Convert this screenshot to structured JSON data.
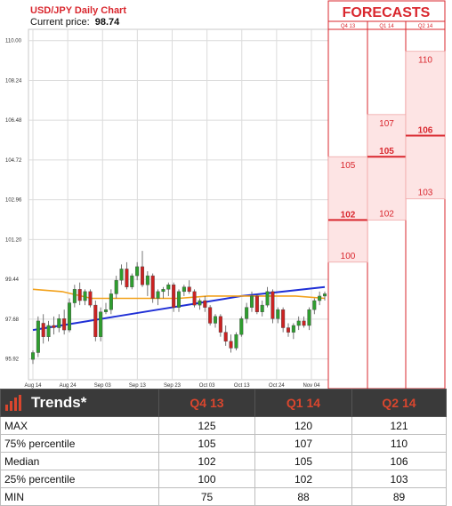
{
  "chart": {
    "title": "USD/JPY Daily Chart",
    "price_label": "Current price:",
    "price_value": "98.74"
  },
  "forecast_panel": {
    "title": "FORECASTS",
    "columns": [
      "Q4 13",
      "Q1 14",
      "Q2 14"
    ]
  },
  "trends_table": {
    "title": "Trends*",
    "headers": [
      "Q4 13",
      "Q1 14",
      "Q2 14"
    ],
    "rows": [
      {
        "label": "MAX",
        "values": [
          "125",
          "120",
          "121"
        ]
      },
      {
        "label": "75% percentile",
        "values": [
          "105",
          "107",
          "110"
        ]
      },
      {
        "label": "Median",
        "values": [
          "102",
          "105",
          "106"
        ]
      },
      {
        "label": "25% percentile",
        "values": [
          "100",
          "102",
          "103"
        ]
      },
      {
        "label": "MIN",
        "values": [
          "75",
          "88",
          "89"
        ]
      }
    ]
  },
  "colors": {
    "forecast_red": "#d9272e",
    "candle_up": "#2e9e2e",
    "candle_down": "#cc2222",
    "trend_blue": "#1f2fd6",
    "trend_orange": "#f2a11a",
    "band_fill": "#fde4e4"
  },
  "chart_data": {
    "type": "candlestick",
    "title": "USD/JPY Daily Chart",
    "ylim": [
      95.0,
      110.5
    ],
    "yticks": [
      "110.00",
      "108.24",
      "106.48",
      "104.72",
      "102.96",
      "101.20",
      "99.44",
      "97.68",
      "95.92"
    ],
    "yticks_values": [
      110.0,
      108.24,
      106.48,
      104.72,
      102.96,
      101.2,
      99.44,
      97.68,
      95.92
    ],
    "xticks": [
      "Aug 14",
      "Aug 24",
      "Sep 03",
      "Sep 13",
      "Sep 23",
      "Oct 03",
      "Oct 13",
      "Oct 24",
      "Nov 04"
    ],
    "grid": true,
    "candles": [
      {
        "o": 95.9,
        "h": 96.3,
        "l": 95.7,
        "c": 96.2
      },
      {
        "o": 96.2,
        "h": 97.8,
        "l": 96.0,
        "c": 97.6
      },
      {
        "o": 97.5,
        "h": 97.9,
        "l": 96.6,
        "c": 96.9
      },
      {
        "o": 96.9,
        "h": 97.6,
        "l": 96.7,
        "c": 97.4
      },
      {
        "o": 97.4,
        "h": 97.8,
        "l": 97.0,
        "c": 97.3
      },
      {
        "o": 97.3,
        "h": 97.9,
        "l": 97.1,
        "c": 97.7
      },
      {
        "o": 97.7,
        "h": 98.1,
        "l": 97.0,
        "c": 97.2
      },
      {
        "o": 97.2,
        "h": 98.6,
        "l": 97.1,
        "c": 98.4
      },
      {
        "o": 98.4,
        "h": 99.2,
        "l": 98.2,
        "c": 99.0
      },
      {
        "o": 99.0,
        "h": 99.3,
        "l": 98.3,
        "c": 98.5
      },
      {
        "o": 98.5,
        "h": 99.0,
        "l": 98.3,
        "c": 98.9
      },
      {
        "o": 98.9,
        "h": 99.0,
        "l": 98.2,
        "c": 98.3
      },
      {
        "o": 98.3,
        "h": 98.5,
        "l": 96.7,
        "c": 96.9
      },
      {
        "o": 96.9,
        "h": 98.2,
        "l": 96.7,
        "c": 98.0
      },
      {
        "o": 98.0,
        "h": 98.4,
        "l": 97.9,
        "c": 98.1
      },
      {
        "o": 98.1,
        "h": 99.0,
        "l": 97.9,
        "c": 98.8
      },
      {
        "o": 98.8,
        "h": 99.6,
        "l": 98.6,
        "c": 99.4
      },
      {
        "o": 99.4,
        "h": 100.1,
        "l": 99.2,
        "c": 99.9
      },
      {
        "o": 99.9,
        "h": 100.2,
        "l": 99.0,
        "c": 99.1
      },
      {
        "o": 99.1,
        "h": 99.7,
        "l": 99.0,
        "c": 99.6
      },
      {
        "o": 99.6,
        "h": 100.2,
        "l": 99.4,
        "c": 100.0
      },
      {
        "o": 100.0,
        "h": 100.7,
        "l": 99.1,
        "c": 99.2
      },
      {
        "o": 99.2,
        "h": 99.8,
        "l": 98.7,
        "c": 99.6
      },
      {
        "o": 99.6,
        "h": 99.7,
        "l": 98.4,
        "c": 98.6
      },
      {
        "o": 98.6,
        "h": 99.0,
        "l": 98.3,
        "c": 98.9
      },
      {
        "o": 98.9,
        "h": 99.1,
        "l": 98.6,
        "c": 99.0
      },
      {
        "o": 99.0,
        "h": 99.3,
        "l": 98.7,
        "c": 99.2
      },
      {
        "o": 99.2,
        "h": 99.3,
        "l": 98.0,
        "c": 98.2
      },
      {
        "o": 98.2,
        "h": 99.0,
        "l": 98.0,
        "c": 98.9
      },
      {
        "o": 98.9,
        "h": 99.2,
        "l": 98.7,
        "c": 99.1
      },
      {
        "o": 99.1,
        "h": 99.4,
        "l": 98.8,
        "c": 98.9
      },
      {
        "o": 98.9,
        "h": 99.0,
        "l": 98.2,
        "c": 98.3
      },
      {
        "o": 98.3,
        "h": 98.6,
        "l": 98.1,
        "c": 98.5
      },
      {
        "o": 98.5,
        "h": 98.7,
        "l": 98.0,
        "c": 98.2
      },
      {
        "o": 98.2,
        "h": 98.3,
        "l": 97.4,
        "c": 97.5
      },
      {
        "o": 97.5,
        "h": 97.9,
        "l": 97.3,
        "c": 97.8
      },
      {
        "o": 97.8,
        "h": 97.9,
        "l": 96.9,
        "c": 97.1
      },
      {
        "o": 97.1,
        "h": 97.4,
        "l": 96.5,
        "c": 96.7
      },
      {
        "o": 96.7,
        "h": 97.0,
        "l": 96.2,
        "c": 96.4
      },
      {
        "o": 96.4,
        "h": 97.1,
        "l": 96.3,
        "c": 97.0
      },
      {
        "o": 97.0,
        "h": 97.8,
        "l": 96.9,
        "c": 97.7
      },
      {
        "o": 97.7,
        "h": 98.4,
        "l": 97.5,
        "c": 98.2
      },
      {
        "o": 98.2,
        "h": 98.9,
        "l": 98.0,
        "c": 98.7
      },
      {
        "o": 98.7,
        "h": 98.8,
        "l": 97.9,
        "c": 98.0
      },
      {
        "o": 98.0,
        "h": 98.5,
        "l": 97.8,
        "c": 98.3
      },
      {
        "o": 98.3,
        "h": 99.1,
        "l": 98.2,
        "c": 98.9
      },
      {
        "o": 98.9,
        "h": 99.0,
        "l": 97.5,
        "c": 97.7
      },
      {
        "o": 97.7,
        "h": 98.2,
        "l": 97.5,
        "c": 98.1
      },
      {
        "o": 98.1,
        "h": 98.2,
        "l": 97.1,
        "c": 97.3
      },
      {
        "o": 97.3,
        "h": 97.5,
        "l": 96.9,
        "c": 97.1
      },
      {
        "o": 97.1,
        "h": 97.5,
        "l": 96.8,
        "c": 97.4
      },
      {
        "o": 97.4,
        "h": 97.8,
        "l": 97.2,
        "c": 97.6
      },
      {
        "o": 97.6,
        "h": 97.8,
        "l": 97.3,
        "c": 97.4
      },
      {
        "o": 97.4,
        "h": 98.2,
        "l": 97.2,
        "c": 98.1
      },
      {
        "o": 98.1,
        "h": 98.6,
        "l": 97.9,
        "c": 98.5
      },
      {
        "o": 98.5,
        "h": 98.9,
        "l": 98.3,
        "c": 98.7
      },
      {
        "o": 98.7,
        "h": 98.9,
        "l": 98.5,
        "c": 98.8
      }
    ],
    "series": [
      {
        "color": "#1f2fd6",
        "values": [
          97.2,
          97.5,
          97.8,
          98.1,
          98.4,
          98.7,
          98.9,
          99.1
        ]
      },
      {
        "color": "#f2a11a",
        "values": [
          99.0,
          98.9,
          98.6,
          98.6,
          98.6,
          98.6,
          98.7,
          98.7,
          98.7,
          98.7,
          98.6
        ]
      }
    ],
    "forecast": {
      "ylim": [
        94.0,
        111.0
      ],
      "columns": [
        {
          "label": "Q4 13",
          "p25": 100,
          "median": 102,
          "p75": 105
        },
        {
          "label": "Q1 14",
          "p25": 102,
          "median": 105,
          "p75": 107
        },
        {
          "label": "Q2 14",
          "p25": 103,
          "median": 106,
          "p75": 110
        }
      ]
    }
  }
}
